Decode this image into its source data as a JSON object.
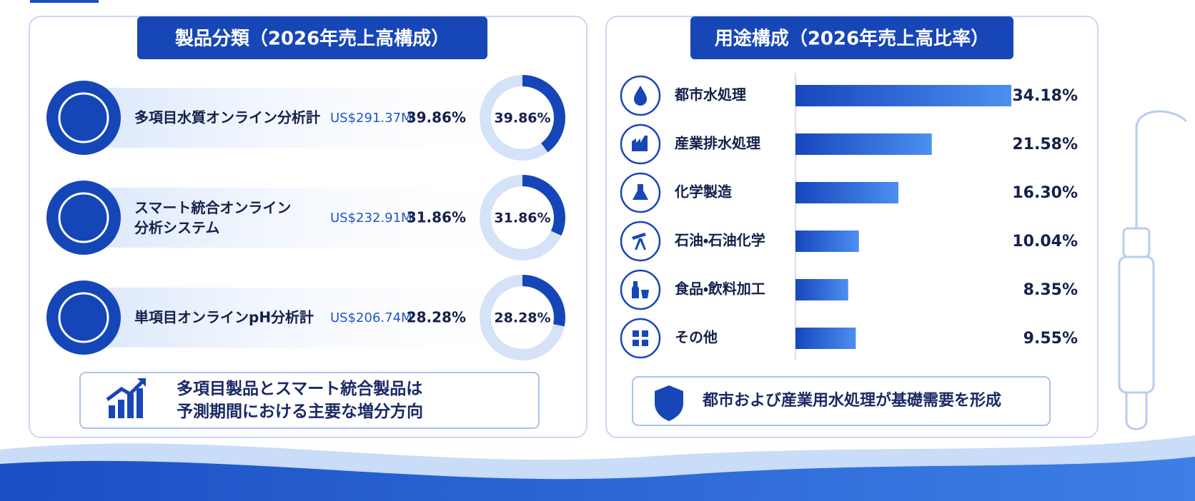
{
  "chart_data": [
    {
      "type": "donut",
      "title": "製品分類（2026年売上高構成）",
      "categories": [
        "多項目水質オンライン分析計",
        "スマート統合オンライン\n分析システム",
        "単項目オンラインpH分析計"
      ],
      "amount_labels": [
        "US$291.37M",
        "US$232.91M",
        "US$206.74M"
      ],
      "values": [
        39.86,
        31.86,
        28.28
      ],
      "value_labels": [
        "39.86%",
        "31.86%",
        "28.28%"
      ],
      "color": "#1546b8",
      "note": "多項目製品とスマート統合製品は\n予測期間における主要な増分方向"
    },
    {
      "type": "bar",
      "title": "用途構成（2026年売上高比率）",
      "categories": [
        "都市水処理",
        "産業排水処理",
        "化学製造",
        "石油・石油化学",
        "食品・飲料加工",
        "その他"
      ],
      "values": [
        34.18,
        21.58,
        16.3,
        10.04,
        8.35,
        9.55
      ],
      "value_labels": [
        "34.18%",
        "21.58%",
        "16.30%",
        "10.04%",
        "8.35%",
        "9.55%"
      ],
      "color": "#1f5fd6",
      "note": "都市および産業用水処理が基礎需要を形成"
    }
  ]
}
